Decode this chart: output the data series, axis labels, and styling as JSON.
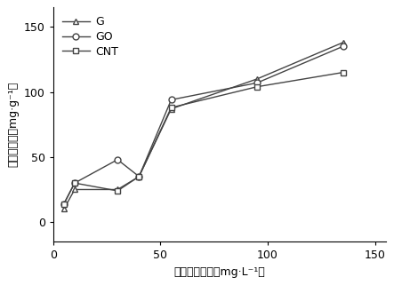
{
  "series": [
    {
      "label": "G",
      "marker": "^",
      "x": [
        5,
        10,
        30,
        40,
        55,
        95,
        135
      ],
      "y": [
        10,
        25,
        25,
        35,
        87,
        110,
        138
      ]
    },
    {
      "label": "GO",
      "marker": "o",
      "x": [
        5,
        10,
        30,
        40,
        55,
        95,
        135
      ],
      "y": [
        14,
        30,
        48,
        35,
        94,
        107,
        135
      ]
    },
    {
      "label": "CNT",
      "marker": "s",
      "x": [
        5,
        10,
        30,
        40,
        55,
        95,
        135
      ],
      "y": [
        14,
        30,
        24,
        35,
        88,
        104,
        115
      ]
    }
  ],
  "xlabel": "平衡质量浓度（mg·L⁻¹）",
  "ylabel": "平衡吸附量（mg·g⁻¹）",
  "xlim": [
    0,
    155
  ],
  "ylim": [
    -15,
    165
  ],
  "xticks": [
    0,
    50,
    100,
    150
  ],
  "yticks": [
    0,
    50,
    100,
    150
  ],
  "line_color": "#444444",
  "marker_size": 5,
  "line_width": 1.0,
  "legend_fontsize": 9,
  "axis_fontsize": 9,
  "tick_fontsize": 9
}
